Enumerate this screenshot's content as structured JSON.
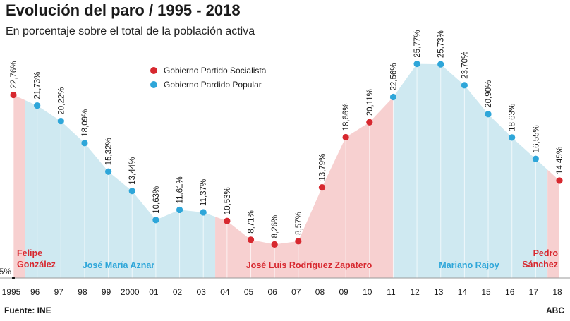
{
  "header": {
    "title": "Evolución del paro / 1995 - 2018",
    "subtitle": "En porcentaje sobre el total de la población activa"
  },
  "footer": {
    "source": "Fuente: INE",
    "brand": "ABC"
  },
  "colors": {
    "socialist": "#d7282f",
    "popular": "#2ea6d9",
    "socialist_fill": "#f7d0d0",
    "popular_fill": "#cfe9f1"
  },
  "chart_data": {
    "type": "area",
    "title": "Evolución del paro / 1995 - 2018",
    "subtitle": "En porcentaje sobre el total de la población activa",
    "x": [
      "1995",
      "96",
      "97",
      "98",
      "99",
      "2000",
      "01",
      "02",
      "03",
      "04",
      "05",
      "06",
      "07",
      "08",
      "09",
      "10",
      "11",
      "12",
      "13",
      "14",
      "15",
      "16",
      "17",
      "18"
    ],
    "values": [
      22.76,
      21.73,
      20.22,
      18.09,
      15.32,
      13.44,
      10.63,
      11.61,
      11.37,
      10.53,
      8.71,
      8.26,
      8.57,
      13.79,
      18.66,
      20.11,
      22.56,
      25.77,
      25.73,
      23.7,
      20.9,
      18.63,
      16.55,
      14.45
    ],
    "value_labels": [
      "22,76%",
      "21,73%",
      "20,22%",
      "18,09%",
      "15,32%",
      "13,44%",
      "10,63%",
      "11,61%",
      "11,37%",
      "10,53%",
      "8,71%",
      "8,26%",
      "8,57%",
      "13,79%",
      "18,66%",
      "20,11%",
      "22,56%",
      "25,77%",
      "25,73%",
      "23,70%",
      "20,90%",
      "18,63%",
      "16,55%",
      "14,45%"
    ],
    "party": [
      "S",
      "P",
      "P",
      "P",
      "P",
      "P",
      "P",
      "P",
      "P",
      "S",
      "S",
      "S",
      "S",
      "S",
      "S",
      "S",
      "P",
      "P",
      "P",
      "P",
      "P",
      "P",
      "P",
      "S"
    ],
    "ylim": [
      5,
      28
    ],
    "baseline_label": "5%",
    "legend": [
      {
        "label": "Gobierno Partido Socialista",
        "party": "S"
      },
      {
        "label": "Gobierno Pardido Popular",
        "party": "P"
      }
    ],
    "governments": [
      {
        "lines": [
          "Felipe",
          "González"
        ],
        "party": "S",
        "from": -0.5,
        "to": 0.5
      },
      {
        "lines": [
          "José María Aznar"
        ],
        "party": "P",
        "from": 0.5,
        "to": 8.5
      },
      {
        "lines": [
          "José Luis Rodríguez Zapatero"
        ],
        "party": "S",
        "from": 8.5,
        "to": 16.0
      },
      {
        "lines": [
          "Mariano Rajoy"
        ],
        "party": "P",
        "from": 16.0,
        "to": 22.5
      },
      {
        "lines": [
          "Pedro",
          "Sánchez"
        ],
        "party": "S",
        "from": 22.5,
        "to": 23.0
      }
    ]
  }
}
